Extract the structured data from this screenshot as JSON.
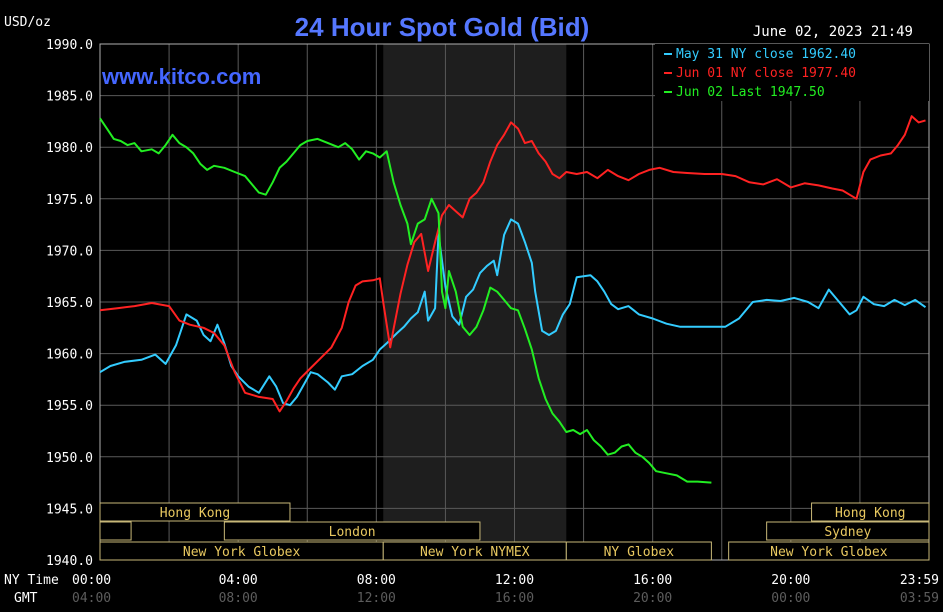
{
  "chart_data": {
    "type": "line",
    "title": "24 Hour Spot Gold (Bid)",
    "watermark": "www.kitco.com",
    "timestamp": "June 02, 2023 21:49",
    "ylabel": "USD/oz",
    "ylim": [
      1940,
      1990
    ],
    "y_ticks": [
      "1990.0",
      "1985.0",
      "1980.0",
      "1975.0",
      "1970.0",
      "1965.0",
      "1960.0",
      "1955.0",
      "1950.0",
      "1945.0",
      "1940.0"
    ],
    "x_row_label_ny": "NY Time",
    "x_row_label_gmt": "GMT",
    "x_ticks_ny": [
      "00:00",
      "04:00",
      "08:00",
      "12:00",
      "16:00",
      "20:00",
      "23:59"
    ],
    "x_ticks_gmt": [
      "04:00",
      "08:00",
      "12:00",
      "16:00",
      "20:00",
      "00:00",
      "03:59"
    ],
    "xlim_hours": [
      0,
      24
    ],
    "shaded_region_hours": [
      8.2,
      13.5
    ],
    "legend": [
      {
        "label": "May 31 NY close 1962.40",
        "color": "#33ccff"
      },
      {
        "label": "Jun 01 NY close 1977.40",
        "color": "#ff2222"
      },
      {
        "label": "Jun 02 Last 1947.50",
        "color": "#22ee22"
      }
    ],
    "sessions": [
      {
        "label": "Hong Kong",
        "row": 0,
        "start": 0.0,
        "end": 5.5,
        "show": true
      },
      {
        "label": "Hong Kong",
        "row": 0,
        "start": 20.6,
        "end": 24.0,
        "show": true
      },
      {
        "label": "",
        "row": 1,
        "start": 0.0,
        "end": 0.9,
        "show": false
      },
      {
        "label": "London",
        "row": 1,
        "start": 3.6,
        "end": 11.0,
        "show": true
      },
      {
        "label": "Sydney",
        "row": 1,
        "start": 19.3,
        "end": 24.0,
        "show": true
      },
      {
        "label": "New York Globex",
        "row": 2,
        "start": 0.0,
        "end": 8.2,
        "show": true
      },
      {
        "label": "New York NYMEX",
        "row": 2,
        "start": 8.2,
        "end": 13.5,
        "show": true
      },
      {
        "label": "NY Globex",
        "row": 2,
        "start": 13.5,
        "end": 17.7,
        "show": true
      },
      {
        "label": "New York Globex",
        "row": 2,
        "start": 18.2,
        "end": 24.0,
        "show": true
      }
    ],
    "series": [
      {
        "name": "May 31",
        "color": "#33ccff",
        "points": [
          [
            0,
            1958.2
          ],
          [
            0.3,
            1958.8
          ],
          [
            0.7,
            1959.2
          ],
          [
            1.2,
            1959.4
          ],
          [
            1.6,
            1959.9
          ],
          [
            1.9,
            1959.0
          ],
          [
            2.2,
            1960.8
          ],
          [
            2.5,
            1963.8
          ],
          [
            2.8,
            1963.2
          ],
          [
            3.0,
            1961.8
          ],
          [
            3.2,
            1961.2
          ],
          [
            3.4,
            1962.8
          ],
          [
            3.6,
            1961.0
          ],
          [
            3.8,
            1958.8
          ],
          [
            4.0,
            1957.8
          ],
          [
            4.3,
            1956.8
          ],
          [
            4.6,
            1956.2
          ],
          [
            4.9,
            1957.8
          ],
          [
            5.1,
            1956.8
          ],
          [
            5.3,
            1955.2
          ],
          [
            5.5,
            1955.0
          ],
          [
            5.7,
            1955.8
          ],
          [
            5.9,
            1957.0
          ],
          [
            6.1,
            1958.2
          ],
          [
            6.3,
            1958.0
          ],
          [
            6.6,
            1957.2
          ],
          [
            6.8,
            1956.5
          ],
          [
            7.0,
            1957.8
          ],
          [
            7.3,
            1958.0
          ],
          [
            7.6,
            1958.8
          ],
          [
            7.9,
            1959.4
          ],
          [
            8.1,
            1960.4
          ],
          [
            8.3,
            1961.0
          ],
          [
            8.6,
            1962.0
          ],
          [
            8.8,
            1962.6
          ],
          [
            9.0,
            1963.4
          ],
          [
            9.2,
            1964.0
          ],
          [
            9.4,
            1966.0
          ],
          [
            9.5,
            1963.2
          ],
          [
            9.7,
            1964.4
          ],
          [
            9.8,
            1971.6
          ],
          [
            10.0,
            1966.5
          ],
          [
            10.2,
            1963.6
          ],
          [
            10.4,
            1962.8
          ],
          [
            10.6,
            1965.5
          ],
          [
            10.8,
            1966.2
          ],
          [
            11.0,
            1967.8
          ],
          [
            11.2,
            1968.5
          ],
          [
            11.4,
            1969.0
          ],
          [
            11.5,
            1967.6
          ],
          [
            11.7,
            1971.5
          ],
          [
            11.9,
            1973.0
          ],
          [
            12.1,
            1972.6
          ],
          [
            12.3,
            1970.8
          ],
          [
            12.5,
            1968.8
          ],
          [
            12.6,
            1966.0
          ],
          [
            12.8,
            1962.2
          ],
          [
            13.0,
            1961.8
          ],
          [
            13.2,
            1962.2
          ],
          [
            13.4,
            1963.8
          ],
          [
            13.6,
            1964.8
          ],
          [
            13.8,
            1967.4
          ],
          [
            14.0,
            1967.5
          ],
          [
            14.2,
            1967.6
          ],
          [
            14.4,
            1967.0
          ],
          [
            14.6,
            1966.0
          ],
          [
            14.8,
            1964.8
          ],
          [
            15.0,
            1964.3
          ],
          [
            15.3,
            1964.6
          ],
          [
            15.6,
            1963.8
          ],
          [
            16.0,
            1963.4
          ],
          [
            16.4,
            1962.9
          ],
          [
            16.8,
            1962.6
          ],
          [
            17.2,
            1962.6
          ],
          [
            17.7,
            1962.6
          ],
          [
            18.1,
            1962.6
          ],
          [
            18.5,
            1963.4
          ],
          [
            18.9,
            1965.0
          ],
          [
            19.3,
            1965.2
          ],
          [
            19.7,
            1965.1
          ],
          [
            20.1,
            1965.4
          ],
          [
            20.5,
            1965.0
          ],
          [
            20.8,
            1964.4
          ],
          [
            21.1,
            1966.2
          ],
          [
            21.4,
            1965.0
          ],
          [
            21.7,
            1963.8
          ],
          [
            21.9,
            1964.2
          ],
          [
            22.1,
            1965.5
          ],
          [
            22.4,
            1964.8
          ],
          [
            22.7,
            1964.6
          ],
          [
            23.0,
            1965.2
          ],
          [
            23.3,
            1964.7
          ],
          [
            23.6,
            1965.2
          ],
          [
            23.9,
            1964.5
          ]
        ]
      },
      {
        "name": "Jun 01",
        "color": "#ff2222",
        "points": [
          [
            0,
            1964.2
          ],
          [
            0.5,
            1964.4
          ],
          [
            1.0,
            1964.6
          ],
          [
            1.5,
            1964.9
          ],
          [
            2.0,
            1964.6
          ],
          [
            2.3,
            1963.2
          ],
          [
            2.6,
            1962.8
          ],
          [
            3.0,
            1962.5
          ],
          [
            3.3,
            1962.0
          ],
          [
            3.6,
            1960.8
          ],
          [
            3.9,
            1958.2
          ],
          [
            4.2,
            1956.2
          ],
          [
            4.6,
            1955.8
          ],
          [
            5.0,
            1955.6
          ],
          [
            5.2,
            1954.4
          ],
          [
            5.4,
            1955.4
          ],
          [
            5.6,
            1956.6
          ],
          [
            5.8,
            1957.6
          ],
          [
            6.1,
            1958.6
          ],
          [
            6.4,
            1959.6
          ],
          [
            6.7,
            1960.6
          ],
          [
            7.0,
            1962.5
          ],
          [
            7.2,
            1965.0
          ],
          [
            7.4,
            1966.6
          ],
          [
            7.6,
            1967.0
          ],
          [
            7.9,
            1967.1
          ],
          [
            8.1,
            1967.3
          ],
          [
            8.2,
            1965.0
          ],
          [
            8.3,
            1962.8
          ],
          [
            8.4,
            1960.6
          ],
          [
            8.5,
            1962.4
          ],
          [
            8.7,
            1965.8
          ],
          [
            8.9,
            1968.6
          ],
          [
            9.1,
            1970.8
          ],
          [
            9.3,
            1971.6
          ],
          [
            9.5,
            1968.0
          ],
          [
            9.7,
            1970.8
          ],
          [
            9.9,
            1973.4
          ],
          [
            10.1,
            1974.4
          ],
          [
            10.3,
            1973.8
          ],
          [
            10.5,
            1973.2
          ],
          [
            10.7,
            1975.0
          ],
          [
            10.9,
            1975.6
          ],
          [
            11.1,
            1976.6
          ],
          [
            11.3,
            1978.6
          ],
          [
            11.5,
            1980.2
          ],
          [
            11.7,
            1981.2
          ],
          [
            11.9,
            1982.4
          ],
          [
            12.1,
            1981.8
          ],
          [
            12.3,
            1980.4
          ],
          [
            12.5,
            1980.6
          ],
          [
            12.7,
            1979.4
          ],
          [
            12.9,
            1978.6
          ],
          [
            13.1,
            1977.4
          ],
          [
            13.3,
            1977.0
          ],
          [
            13.5,
            1977.6
          ],
          [
            13.8,
            1977.4
          ],
          [
            14.1,
            1977.6
          ],
          [
            14.4,
            1977.0
          ],
          [
            14.7,
            1977.8
          ],
          [
            15.0,
            1977.2
          ],
          [
            15.3,
            1976.8
          ],
          [
            15.6,
            1977.4
          ],
          [
            15.9,
            1977.8
          ],
          [
            16.2,
            1978.0
          ],
          [
            16.6,
            1977.6
          ],
          [
            17.0,
            1977.5
          ],
          [
            17.5,
            1977.4
          ],
          [
            18.0,
            1977.4
          ],
          [
            18.4,
            1977.2
          ],
          [
            18.8,
            1976.6
          ],
          [
            19.2,
            1976.4
          ],
          [
            19.6,
            1976.9
          ],
          [
            20.0,
            1976.1
          ],
          [
            20.4,
            1976.5
          ],
          [
            20.8,
            1976.3
          ],
          [
            21.2,
            1976.0
          ],
          [
            21.5,
            1975.8
          ],
          [
            21.7,
            1975.4
          ],
          [
            21.9,
            1975.0
          ],
          [
            22.1,
            1977.6
          ],
          [
            22.3,
            1978.8
          ],
          [
            22.6,
            1979.2
          ],
          [
            22.9,
            1979.4
          ],
          [
            23.1,
            1980.2
          ],
          [
            23.3,
            1981.2
          ],
          [
            23.5,
            1983.0
          ],
          [
            23.7,
            1982.4
          ],
          [
            23.9,
            1982.6
          ]
        ]
      },
      {
        "name": "Jun 02",
        "color": "#22ee22",
        "points": [
          [
            0,
            1982.8
          ],
          [
            0.2,
            1981.8
          ],
          [
            0.4,
            1980.8
          ],
          [
            0.6,
            1980.6
          ],
          [
            0.8,
            1980.2
          ],
          [
            1.0,
            1980.4
          ],
          [
            1.2,
            1979.6
          ],
          [
            1.5,
            1979.8
          ],
          [
            1.7,
            1979.4
          ],
          [
            1.9,
            1980.2
          ],
          [
            2.1,
            1981.2
          ],
          [
            2.3,
            1980.4
          ],
          [
            2.5,
            1980.0
          ],
          [
            2.7,
            1979.4
          ],
          [
            2.9,
            1978.4
          ],
          [
            3.1,
            1977.8
          ],
          [
            3.3,
            1978.2
          ],
          [
            3.6,
            1978.0
          ],
          [
            3.9,
            1977.6
          ],
          [
            4.2,
            1977.2
          ],
          [
            4.4,
            1976.4
          ],
          [
            4.6,
            1975.6
          ],
          [
            4.8,
            1975.4
          ],
          [
            5.0,
            1976.6
          ],
          [
            5.2,
            1978.0
          ],
          [
            5.4,
            1978.6
          ],
          [
            5.6,
            1979.4
          ],
          [
            5.8,
            1980.2
          ],
          [
            6.0,
            1980.6
          ],
          [
            6.3,
            1980.8
          ],
          [
            6.6,
            1980.4
          ],
          [
            6.9,
            1980.0
          ],
          [
            7.1,
            1980.4
          ],
          [
            7.3,
            1979.8
          ],
          [
            7.5,
            1978.8
          ],
          [
            7.7,
            1979.6
          ],
          [
            7.9,
            1979.4
          ],
          [
            8.1,
            1979.0
          ],
          [
            8.3,
            1979.6
          ],
          [
            8.5,
            1976.6
          ],
          [
            8.7,
            1974.4
          ],
          [
            8.9,
            1972.6
          ],
          [
            9.0,
            1970.6
          ],
          [
            9.2,
            1972.6
          ],
          [
            9.4,
            1973.0
          ],
          [
            9.6,
            1975.0
          ],
          [
            9.8,
            1973.6
          ],
          [
            9.9,
            1966.0
          ],
          [
            10.0,
            1964.4
          ],
          [
            10.1,
            1968.0
          ],
          [
            10.3,
            1966.0
          ],
          [
            10.5,
            1962.6
          ],
          [
            10.7,
            1961.8
          ],
          [
            10.9,
            1962.6
          ],
          [
            11.1,
            1964.2
          ],
          [
            11.3,
            1966.4
          ],
          [
            11.5,
            1966.0
          ],
          [
            11.7,
            1965.2
          ],
          [
            11.9,
            1964.4
          ],
          [
            12.1,
            1964.2
          ],
          [
            12.3,
            1962.4
          ],
          [
            12.5,
            1960.4
          ],
          [
            12.7,
            1957.6
          ],
          [
            12.9,
            1955.6
          ],
          [
            13.1,
            1954.2
          ],
          [
            13.3,
            1953.4
          ],
          [
            13.5,
            1952.4
          ],
          [
            13.7,
            1952.6
          ],
          [
            13.9,
            1952.2
          ],
          [
            14.1,
            1952.6
          ],
          [
            14.3,
            1951.6
          ],
          [
            14.5,
            1951.0
          ],
          [
            14.7,
            1950.2
          ],
          [
            14.9,
            1950.4
          ],
          [
            15.1,
            1951.0
          ],
          [
            15.3,
            1951.2
          ],
          [
            15.5,
            1950.4
          ],
          [
            15.7,
            1950.0
          ],
          [
            15.9,
            1949.4
          ],
          [
            16.1,
            1948.6
          ],
          [
            16.4,
            1948.4
          ],
          [
            16.7,
            1948.2
          ],
          [
            17.0,
            1947.6
          ],
          [
            17.3,
            1947.6
          ],
          [
            17.7,
            1947.5
          ]
        ]
      }
    ]
  }
}
